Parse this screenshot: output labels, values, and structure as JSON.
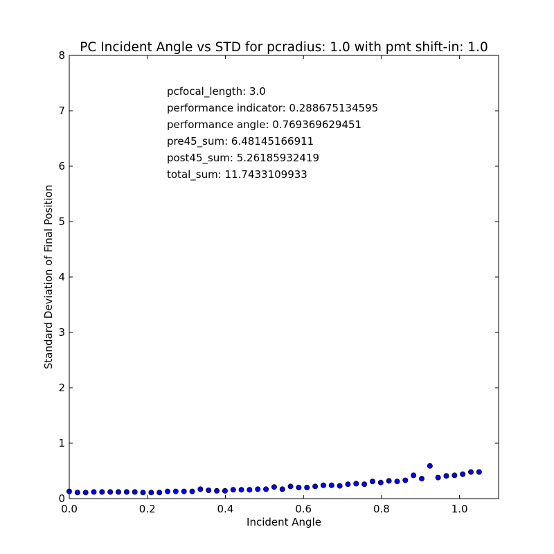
{
  "chart_data": {
    "type": "scatter",
    "title": "PC Incident Angle vs STD for pcradius: 1.0 with pmt shift-in: 1.0",
    "xlabel": "Incident Angle",
    "ylabel": "Standard Deviation of Final Position",
    "xlim": [
      0,
      1.1
    ],
    "ylim": [
      0,
      8
    ],
    "x_ticks": [
      "0.0",
      "0.2",
      "0.4",
      "0.6",
      "0.8",
      "1.0"
    ],
    "y_ticks": [
      "0",
      "1",
      "2",
      "3",
      "4",
      "5",
      "6",
      "7",
      "8"
    ],
    "grid": false,
    "marker_color": "#0000ff",
    "annotations": [
      "pcfocal_length: 3.0",
      "performance indicator: 0.288675134595",
      "performance angle: 0.769369629451",
      "pre45_sum: 6.48145166911",
      "post45_sum: 5.26185932419",
      "total_sum: 11.7433109933"
    ],
    "x": [
      0.0,
      0.021,
      0.042,
      0.063,
      0.084,
      0.105,
      0.126,
      0.147,
      0.168,
      0.189,
      0.21,
      0.231,
      0.252,
      0.273,
      0.294,
      0.315,
      0.336,
      0.357,
      0.378,
      0.399,
      0.42,
      0.441,
      0.462,
      0.483,
      0.504,
      0.525,
      0.546,
      0.567,
      0.588,
      0.609,
      0.63,
      0.651,
      0.672,
      0.693,
      0.714,
      0.735,
      0.756,
      0.777,
      0.798,
      0.819,
      0.84,
      0.861,
      0.882,
      0.903,
      0.924,
      0.945,
      0.966,
      0.987,
      1.008,
      1.029,
      1.05
    ],
    "y": [
      0.13,
      0.11,
      0.11,
      0.12,
      0.12,
      0.12,
      0.12,
      0.12,
      0.12,
      0.11,
      0.11,
      0.11,
      0.13,
      0.13,
      0.13,
      0.13,
      0.17,
      0.15,
      0.14,
      0.14,
      0.16,
      0.16,
      0.16,
      0.17,
      0.17,
      0.21,
      0.17,
      0.22,
      0.2,
      0.2,
      0.22,
      0.24,
      0.24,
      0.23,
      0.26,
      0.27,
      0.26,
      0.31,
      0.29,
      0.32,
      0.31,
      0.33,
      0.42,
      0.36,
      0.59,
      0.38,
      0.41,
      0.42,
      0.44,
      0.48,
      0.48
    ]
  }
}
